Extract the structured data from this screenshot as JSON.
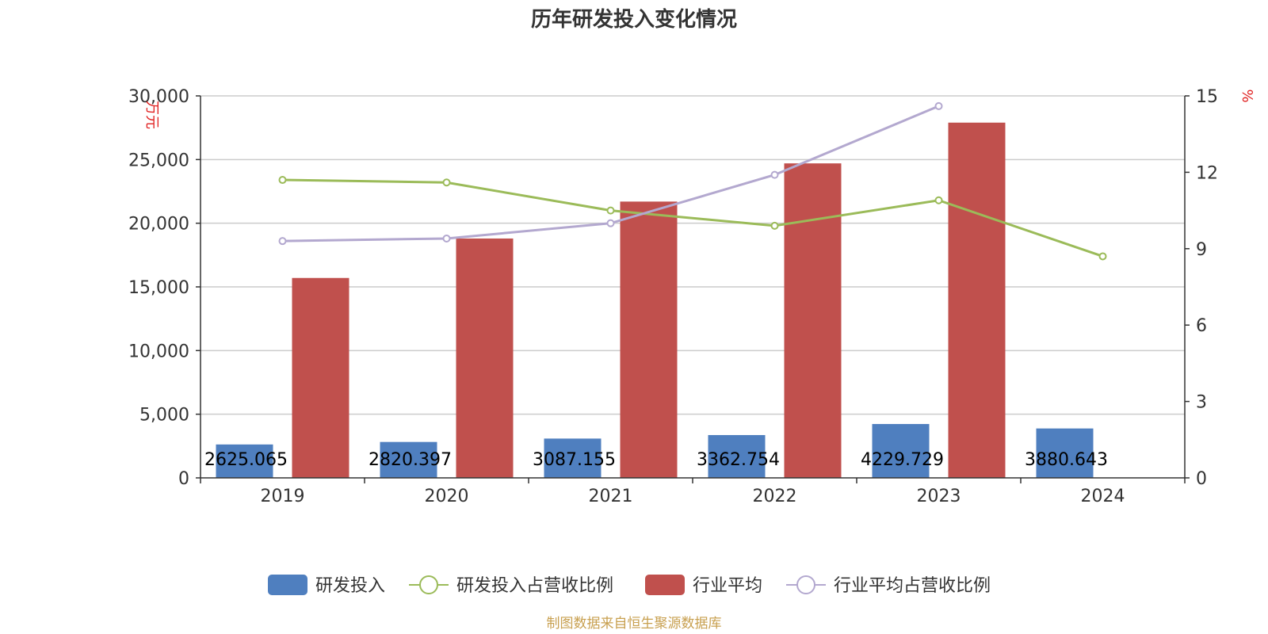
{
  "chart_data": {
    "type": "bar",
    "title": "历年研发投入变化情况",
    "categories": [
      "2019",
      "2020",
      "2021",
      "2022",
      "2023",
      "2024"
    ],
    "y_left": {
      "unit": "万元",
      "ylim": [
        0,
        30000
      ],
      "ticks": [
        0,
        5000,
        10000,
        15000,
        20000,
        25000,
        30000
      ],
      "tick_labels": [
        "0",
        "5,000",
        "10,000",
        "15,000",
        "20,000",
        "25,000",
        "30,000"
      ]
    },
    "y_right": {
      "unit": "%",
      "ylim": [
        0,
        15
      ],
      "ticks": [
        0,
        3,
        6,
        9,
        12,
        15
      ],
      "tick_labels": [
        "0",
        "3",
        "6",
        "9",
        "12",
        "15"
      ]
    },
    "series": [
      {
        "name": "研发投入",
        "kind": "bar",
        "axis": "left",
        "color": "#4f7fbf",
        "values": [
          2625.065,
          2820.397,
          3087.155,
          3362.754,
          4229.729,
          3880.643
        ],
        "labels": [
          "2625.065",
          "2820.397",
          "3087.155",
          "3362.754",
          "4229.729",
          "3880.643"
        ]
      },
      {
        "name": "研发投入占营收比例",
        "kind": "line",
        "axis": "right",
        "color": "#9bbb59",
        "values": [
          11.7,
          11.6,
          10.5,
          9.9,
          10.9,
          8.7
        ]
      },
      {
        "name": "行业平均",
        "kind": "bar",
        "axis": "left",
        "color": "#c0504d",
        "values": [
          15700,
          18800,
          21700,
          24700,
          27900,
          null
        ]
      },
      {
        "name": "行业平均占营收比例",
        "kind": "line",
        "axis": "right",
        "color": "#b3a8cf",
        "values": [
          9.3,
          9.4,
          10.0,
          11.9,
          14.6,
          null
        ]
      }
    ],
    "legend_position": "bottom-center",
    "grid": true
  },
  "footer": {
    "source": "制图数据来自恒生聚源数据库"
  }
}
